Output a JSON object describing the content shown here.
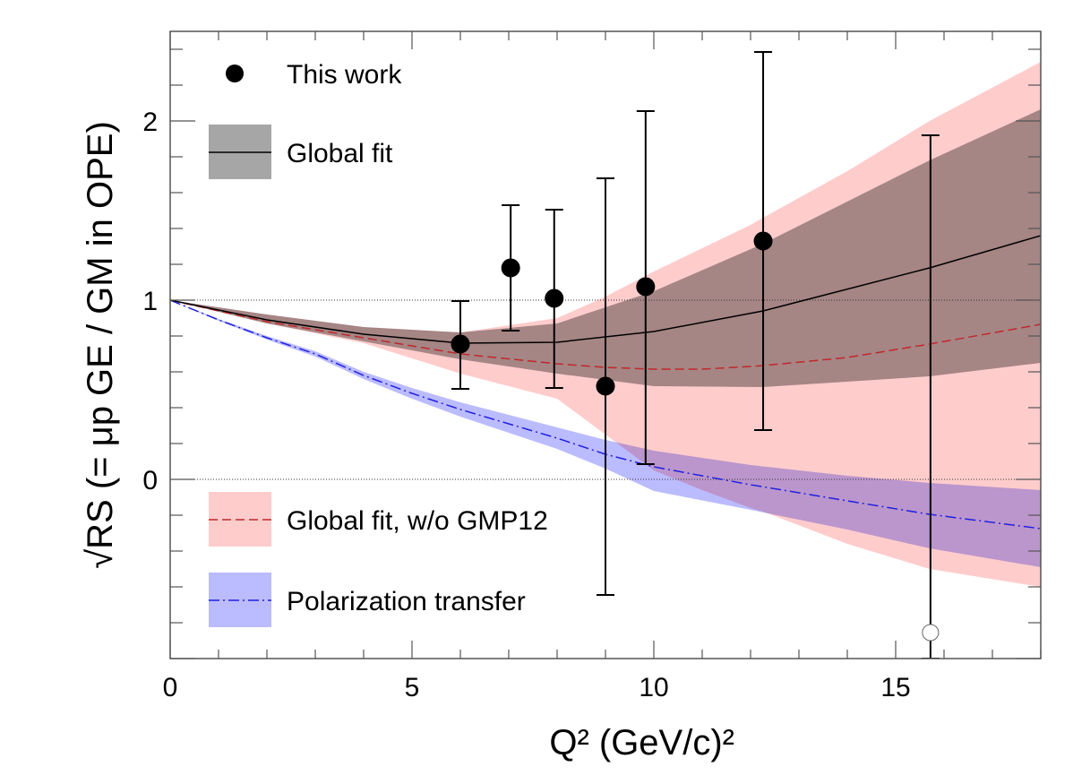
{
  "chart_data": {
    "type": "scatter",
    "xlabel": "Q² (GeV/c)²",
    "ylabel": "√RS (= μp GE / GM in OPE)",
    "xlim": [
      0,
      18
    ],
    "ylim": [
      -1,
      2.5
    ],
    "x_ticks": [
      "0",
      "5",
      "10",
      "15"
    ],
    "y_ticks": [
      "0",
      "1",
      "2"
    ],
    "reference_lines": [
      0,
      1
    ],
    "legend_placement": "left",
    "colors": {
      "data": "#000000",
      "global_fit_band": "#a6a6a6",
      "global_fit_line": "#000000",
      "no_gmp12_band": "#ffcccc",
      "no_gmp12_line": "#c0282a",
      "pol_band": "#bbbbff",
      "pol_line": "#2020e0"
    },
    "legend": {
      "this_work": "This work",
      "global_fit": "Global fit",
      "no_gmp12": "Global fit, w/o GMP12",
      "pol_transfer": "Polarization transfer"
    },
    "points": [
      {
        "x": 6.0,
        "y": 0.755,
        "err_low": 0.505,
        "err_high": 0.995,
        "open": false
      },
      {
        "x": 7.04,
        "y": 1.18,
        "err_low": 0.83,
        "err_high": 1.53,
        "open": false
      },
      {
        "x": 7.94,
        "y": 1.01,
        "err_low": 0.51,
        "err_high": 1.505,
        "open": false
      },
      {
        "x": 9.0,
        "y": 0.52,
        "err_low": -0.645,
        "err_high": 1.68,
        "open": false
      },
      {
        "x": 9.83,
        "y": 1.075,
        "err_low": 0.085,
        "err_high": 2.055,
        "open": false
      },
      {
        "x": 12.26,
        "y": 1.33,
        "err_low": 0.275,
        "err_high": 2.385,
        "open": false
      },
      {
        "x": 15.72,
        "y": -0.855,
        "err_low": -1.0,
        "err_high": 1.92,
        "open": true
      }
    ],
    "global_fit": {
      "x": [
        0,
        2,
        4,
        6,
        8,
        10,
        12.26,
        15.7,
        18
      ],
      "y": [
        1,
        0.89,
        0.81,
        0.76,
        0.765,
        0.825,
        0.94,
        1.18,
        1.36
      ],
      "upper": [
        1,
        0.92,
        0.85,
        0.82,
        0.87,
        1.05,
        1.315,
        1.78,
        2.065
      ],
      "lower": [
        1,
        0.87,
        0.77,
        0.67,
        0.59,
        0.52,
        0.515,
        0.575,
        0.65
      ]
    },
    "global_fit_no_gmp12": {
      "x": [
        0,
        2,
        4,
        6,
        8,
        9,
        10,
        11,
        12,
        12.26,
        14,
        15.7,
        18
      ],
      "y": [
        1,
        0.88,
        0.79,
        0.7,
        0.645,
        0.625,
        0.615,
        0.615,
        0.63,
        0.635,
        0.68,
        0.755,
        0.865
      ],
      "upper": [
        1,
        0.92,
        0.85,
        0.82,
        0.9,
        1.02,
        1.16,
        1.29,
        1.42,
        1.46,
        1.72,
        2.0,
        2.33
      ],
      "lower": [
        1,
        0.87,
        0.76,
        0.59,
        0.45,
        0.25,
        0.05,
        -0.06,
        -0.16,
        -0.18,
        -0.36,
        -0.5,
        -0.6
      ]
    },
    "polarization_transfer": {
      "x": [
        0,
        1,
        2,
        3,
        4,
        5,
        6,
        7,
        8,
        9,
        10,
        12,
        14,
        15.7,
        18
      ],
      "y": [
        1,
        0.89,
        0.79,
        0.7,
        0.58,
        0.48,
        0.39,
        0.31,
        0.23,
        0.14,
        0.07,
        -0.03,
        -0.12,
        -0.195,
        -0.275
      ],
      "upper": [
        1,
        0.895,
        0.8,
        0.715,
        0.6,
        0.51,
        0.43,
        0.36,
        0.29,
        0.22,
        0.16,
        0.08,
        0.02,
        -0.02,
        -0.06
      ],
      "lower": [
        1,
        0.885,
        0.78,
        0.685,
        0.56,
        0.45,
        0.35,
        0.26,
        0.17,
        0.06,
        -0.065,
        -0.17,
        -0.28,
        -0.385,
        -0.49
      ]
    }
  }
}
